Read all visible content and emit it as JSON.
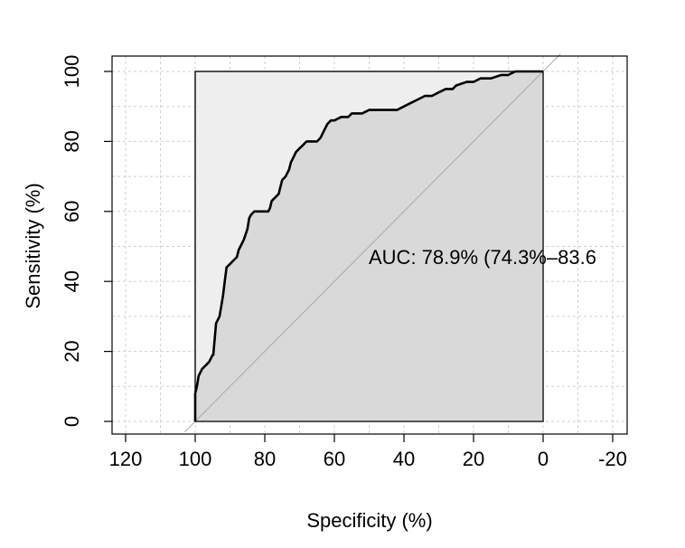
{
  "chart_data": {
    "type": "line",
    "xlabel": "Specificity (%)",
    "ylabel": "Sensitivity (%)",
    "xlim": [
      120,
      -20
    ],
    "ylim": [
      0,
      100
    ],
    "x_reversed": true,
    "x_ticks": [
      "120",
      "100",
      "80",
      "60",
      "40",
      "20",
      "0",
      "-20"
    ],
    "y_ticks": [
      "0",
      "20",
      "40",
      "60",
      "80",
      "100"
    ],
    "grid": true,
    "annotation": "AUC: 78.9% (74.3%–83.6",
    "diagonal_reference": true,
    "series": [
      {
        "x": [
          100,
          100,
          99.5,
          99,
          98,
          97,
          96,
          95,
          94.8,
          94,
          93,
          92.5,
          92,
          91.5,
          91,
          90,
          89,
          88,
          87.5,
          87,
          86,
          85,
          84.5,
          84,
          83,
          82,
          81,
          80,
          79,
          78.5,
          78,
          77,
          76,
          75.5,
          75,
          74,
          73,
          72.5,
          72,
          71,
          70,
          69,
          68,
          67,
          66,
          65,
          64,
          63,
          62,
          61,
          60,
          58,
          56,
          55,
          52,
          50,
          48,
          46,
          44,
          42,
          40,
          38,
          36,
          34,
          33,
          32,
          30,
          28,
          26,
          25,
          22,
          20,
          18,
          16,
          15,
          12,
          10,
          8,
          5,
          2,
          0
        ],
        "y": [
          0,
          8,
          10,
          13,
          15,
          16,
          17,
          19,
          19,
          28,
          30,
          33,
          36,
          40,
          44,
          45,
          46,
          47,
          49,
          50,
          52,
          55,
          58,
          59,
          60,
          60,
          60,
          60,
          60,
          61,
          63,
          64,
          65,
          67,
          69,
          70,
          72,
          74,
          75,
          77,
          78,
          79,
          80,
          80,
          80,
          80,
          81,
          83,
          85,
          86,
          86,
          87,
          87,
          88,
          88,
          89,
          89,
          89,
          89,
          89,
          90,
          91,
          92,
          93,
          93,
          93,
          94,
          95,
          95,
          96,
          97,
          97,
          98,
          98,
          98,
          99,
          99,
          100,
          100,
          100,
          100
        ]
      }
    ]
  }
}
